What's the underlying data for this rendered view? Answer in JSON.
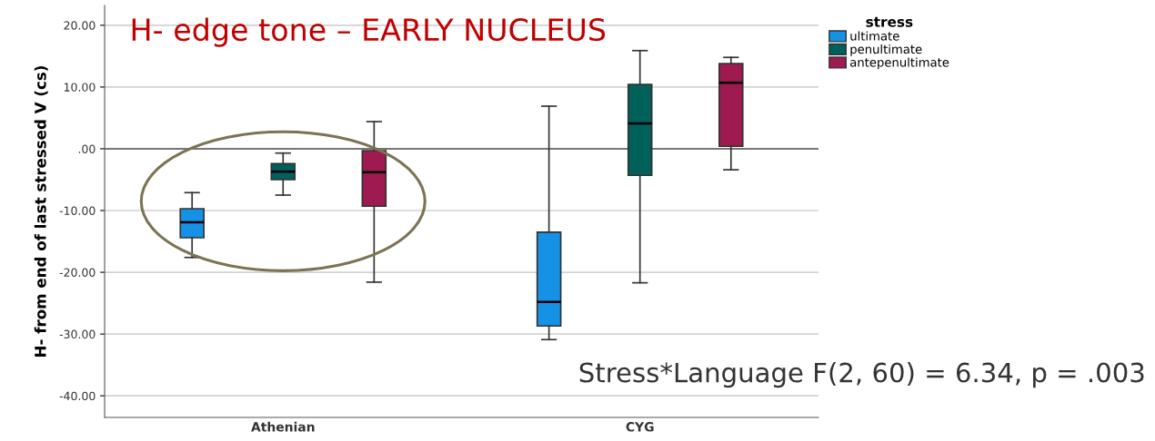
{
  "chart_data": {
    "type": "box",
    "title": "H- edge tone – EARLY NUCLEUS",
    "ylabel": "H- from end of last stressed V (cs)",
    "legend_title": "stress",
    "categories": [
      "Athenian",
      "CYG"
    ],
    "series": [
      {
        "name": "ultimate",
        "color": "#1591e6",
        "boxes": [
          {
            "low": -17.6,
            "q1": -14.4,
            "median": -11.9,
            "q3": -9.7,
            "high": -7.1
          },
          {
            "low": -30.9,
            "q1": -28.7,
            "median": -24.8,
            "q3": -13.5,
            "high": 6.9
          }
        ]
      },
      {
        "name": "penultimate",
        "color": "#00605a",
        "boxes": [
          {
            "low": -7.5,
            "q1": -5.0,
            "median": -3.7,
            "q3": -2.4,
            "high": -0.7
          },
          {
            "low": -21.7,
            "q1": -4.3,
            "median": 4.1,
            "q3": 10.4,
            "high": 15.9
          }
        ]
      },
      {
        "name": "antepenultimate",
        "color": "#9e1a50",
        "boxes": [
          {
            "low": -21.6,
            "q1": -9.3,
            "median": -3.8,
            "q3": -0.3,
            "high": 4.4
          },
          {
            "low": -3.4,
            "q1": 0.4,
            "median": 10.7,
            "q3": 13.8,
            "high": 14.8
          }
        ]
      }
    ],
    "ylim": [
      -43.5,
      23.2
    ],
    "yticks": [
      {
        "value": -40,
        "label": "-40.00"
      },
      {
        "value": -30,
        "label": "-30.00"
      },
      {
        "value": -20,
        "label": "-20.00"
      },
      {
        "value": -10,
        "label": "-10.00"
      },
      {
        "value": 0,
        "label": ".00"
      },
      {
        "value": 10,
        "label": "10.00"
      },
      {
        "value": 20,
        "label": "20.00"
      }
    ],
    "grid": "y",
    "legend": "top right",
    "ref_lines": [
      {
        "axis": "y",
        "value": 0,
        "color": "#555555"
      }
    ],
    "annotations": [
      "Stress*Language F(2, 60) = 6.34, p = .003"
    ]
  }
}
